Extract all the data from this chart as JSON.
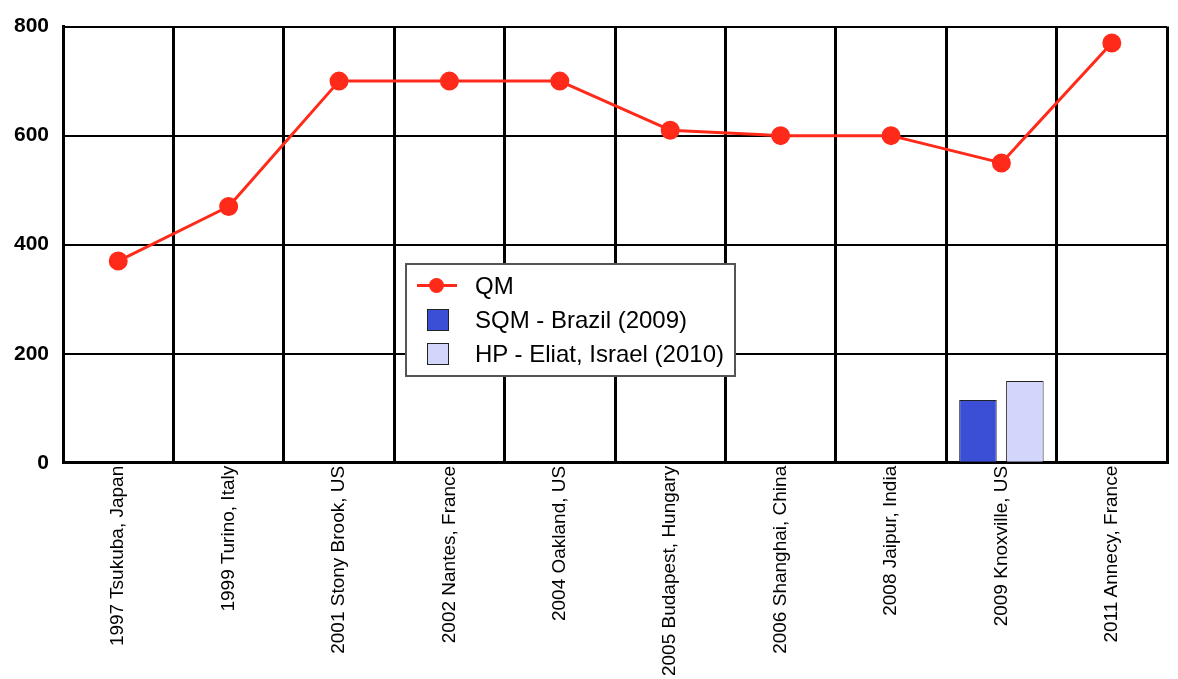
{
  "chart_data": {
    "type": "line",
    "categories": [
      "1997 Tsukuba, Japan",
      "1999 Turino, Italy",
      "2001 Stony Brook, US",
      "2002 Nantes, France",
      "2004 Oakland, US",
      "2005 Budapest, Hungary",
      "2006 Shanghai, China",
      "2008 Jaipur, India",
      "2009 Knoxville, US",
      "2011 Annecy, France"
    ],
    "series": [
      {
        "name": "QM",
        "color": "#ff2a1a",
        "values": [
          370,
          470,
          700,
          700,
          700,
          610,
          600,
          600,
          550,
          770
        ]
      },
      {
        "name": "SQM - Brazil (2009)",
        "type": "bar",
        "color": "#3a4fd6",
        "values": [
          null,
          null,
          null,
          null,
          null,
          null,
          null,
          null,
          115,
          null
        ]
      },
      {
        "name": "HP - Eliat, Israel (2010)",
        "type": "bar",
        "color": "#d2d6fa",
        "values": [
          null,
          null,
          null,
          null,
          null,
          null,
          null,
          null,
          150,
          null
        ]
      }
    ],
    "ylim": [
      0,
      800
    ],
    "yticks": [
      0,
      200,
      400,
      600,
      800
    ],
    "grid": true,
    "legend": "bottom",
    "marker": "circle",
    "line_style": "solid"
  }
}
